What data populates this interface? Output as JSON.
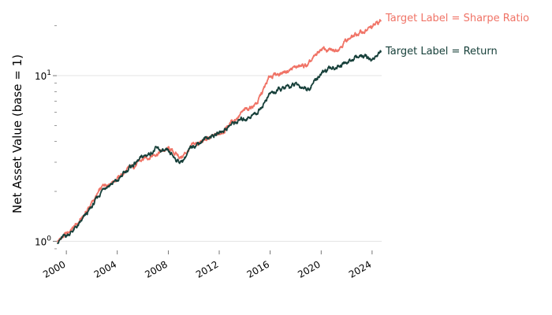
{
  "chart_data": {
    "type": "line",
    "title": "",
    "xlabel": "",
    "ylabel": "Net Asset Value (base = 1)",
    "yscale": "log",
    "ylim": [
      0.88,
      23
    ],
    "xlim": [
      1999.25,
      2024.75
    ],
    "grid": "horizontal major gridlines",
    "x_ticks": [
      {
        "value": 2000,
        "label": "2000"
      },
      {
        "value": 2004,
        "label": "2004"
      },
      {
        "value": 2008,
        "label": "2008"
      },
      {
        "value": 2012,
        "label": "2012"
      },
      {
        "value": 2016,
        "label": "2016"
      },
      {
        "value": 2020,
        "label": "2020"
      },
      {
        "value": 2024,
        "label": "2024"
      }
    ],
    "y_ticks": [
      {
        "value": 1,
        "label": "10^0"
      },
      {
        "value": 10,
        "label": "10^1"
      }
    ],
    "series": [
      {
        "name": "Target Label = Sharpe Ratio",
        "color": "#f07366",
        "x": [
          1999.3,
          2000.0,
          2001.0,
          2002.0,
          2003.0,
          2004.0,
          2005.0,
          2006.0,
          2007.0,
          2008.0,
          2009.0,
          2010.0,
          2011.0,
          2012.0,
          2013.0,
          2014.0,
          2015.0,
          2016.0,
          2017.0,
          2018.0,
          2019.0,
          2020.0,
          2021.0,
          2022.0,
          2023.0,
          2024.0,
          2024.7
        ],
        "y": [
          1.0,
          1.1,
          1.3,
          1.7,
          2.2,
          2.4,
          2.75,
          3.1,
          3.4,
          3.6,
          3.2,
          3.8,
          4.1,
          4.4,
          5.3,
          6.1,
          6.9,
          9.9,
          10.5,
          11.2,
          11.5,
          14.5,
          14.0,
          16.5,
          18.0,
          19.5,
          21.5
        ]
      },
      {
        "name": "Target Label = Return",
        "color": "#17403a",
        "x": [
          1999.3,
          2000.0,
          2001.0,
          2002.0,
          2003.0,
          2004.0,
          2005.0,
          2006.0,
          2007.0,
          2008.0,
          2009.0,
          2010.0,
          2011.0,
          2012.0,
          2013.0,
          2014.0,
          2015.0,
          2016.0,
          2017.0,
          2018.0,
          2019.0,
          2020.0,
          2021.0,
          2022.0,
          2023.0,
          2024.0,
          2024.7
        ],
        "y": [
          1.0,
          1.08,
          1.25,
          1.6,
          2.15,
          2.3,
          2.8,
          3.2,
          3.6,
          3.4,
          3.0,
          3.8,
          4.2,
          4.5,
          5.1,
          5.5,
          6.0,
          7.8,
          8.3,
          8.8,
          8.4,
          10.3,
          11.2,
          12.0,
          13.2,
          12.5,
          14.0
        ]
      }
    ]
  }
}
